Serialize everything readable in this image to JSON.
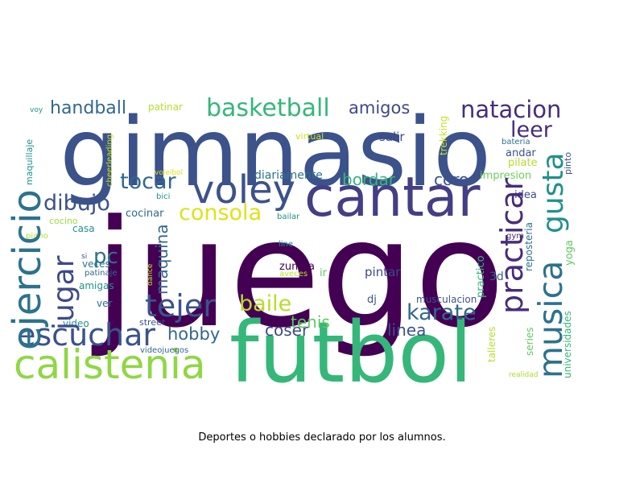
{
  "caption": "Deportes o hobbies declarado por los alumnos.",
  "words": [
    {
      "text": "juego",
      "color": "#440154",
      "vertical": false
    },
    {
      "text": "gimnasio",
      "color": "#3b528b",
      "vertical": false
    },
    {
      "text": "futbol",
      "color": "#35b779",
      "vertical": false
    },
    {
      "text": "cantar",
      "color": "#433e85",
      "vertical": false
    },
    {
      "text": "calistenia",
      "color": "#8fd744",
      "vertical": false
    },
    {
      "text": "voley",
      "color": "#3b528b",
      "vertical": false
    },
    {
      "text": "ejercicio",
      "color": "#2c728e",
      "vertical": true
    },
    {
      "text": "practicar",
      "color": "#472d7b",
      "vertical": true
    },
    {
      "text": "musica",
      "color": "#2c728e",
      "vertical": true
    },
    {
      "text": "gusta",
      "color": "#21918c",
      "vertical": true
    },
    {
      "text": "escuchar",
      "color": "#3b528b",
      "vertical": false
    },
    {
      "text": "tejer",
      "color": "#3b528b",
      "vertical": false
    },
    {
      "text": "jugar",
      "color": "#3e4989",
      "vertical": true
    },
    {
      "text": "basketball",
      "color": "#35b779",
      "vertical": false
    },
    {
      "text": "natacion",
      "color": "#472d7b",
      "vertical": false
    },
    {
      "text": "karate",
      "color": "#31688e",
      "vertical": false
    },
    {
      "text": "baile",
      "color": "#b5de2b",
      "vertical": false
    },
    {
      "text": "dibujo",
      "color": "#3b528b",
      "vertical": false
    },
    {
      "text": "consola",
      "color": "#dde318",
      "vertical": false
    },
    {
      "text": "tocar",
      "color": "#31688e",
      "vertical": false
    },
    {
      "text": "leer",
      "color": "#472d7b",
      "vertical": false
    },
    {
      "text": "handball",
      "color": "#31688e",
      "vertical": false
    },
    {
      "text": "amigos",
      "color": "#3e4989",
      "vertical": false
    },
    {
      "text": "pc",
      "color": "#2c728e",
      "vertical": false
    },
    {
      "text": "maquina",
      "color": "#31688e",
      "vertical": true
    },
    {
      "text": "hobby",
      "color": "#31688e",
      "vertical": false
    },
    {
      "text": "coser",
      "color": "#3e4989",
      "vertical": false
    },
    {
      "text": "tenis",
      "color": "#5ec962",
      "vertical": false
    },
    {
      "text": "linea",
      "color": "#3b528b",
      "vertical": false
    },
    {
      "text": "bordar",
      "color": "#35b779",
      "vertical": false
    },
    {
      "text": "coro",
      "color": "#3b528b",
      "vertical": false
    },
    {
      "text": "diariamente",
      "color": "#2c728e",
      "vertical": false
    },
    {
      "text": "cocinar",
      "color": "#31688e",
      "vertical": false
    },
    {
      "text": "patinar",
      "color": "#b5de2b",
      "vertical": false
    },
    {
      "text": "salir",
      "color": "#3e4989",
      "vertical": false
    },
    {
      "text": "andar",
      "color": "#3b528b",
      "vertical": false
    },
    {
      "text": "pilate",
      "color": "#b5de2b",
      "vertical": false
    },
    {
      "text": "impresion",
      "color": "#6ece58",
      "vertical": false
    },
    {
      "text": "idea",
      "color": "#3e4989",
      "vertical": false
    },
    {
      "text": "bateria",
      "color": "#2c728e",
      "vertical": false
    },
    {
      "text": "pinto",
      "color": "#3b528b",
      "vertical": true
    },
    {
      "text": "trekking",
      "color": "#c8e020",
      "vertical": true
    },
    {
      "text": "virtual",
      "color": "#c8e020",
      "vertical": false
    },
    {
      "text": "gym",
      "color": "#472d7b",
      "vertical": false
    },
    {
      "text": "reposteria",
      "color": "#2c728e",
      "vertical": true
    },
    {
      "text": "yoga",
      "color": "#5ec962",
      "vertical": true
    },
    {
      "text": "pintar",
      "color": "#3e4989",
      "vertical": false
    },
    {
      "text": "practico",
      "color": "#35b779",
      "vertical": true
    },
    {
      "text": "3d",
      "color": "#31688e",
      "vertical": false
    },
    {
      "text": "dj",
      "color": "#3b528b",
      "vertical": false
    },
    {
      "text": "musculacion",
      "color": "#3b528b",
      "vertical": false
    },
    {
      "text": "zumba",
      "color": "#440154",
      "vertical": false
    },
    {
      "text": "ir",
      "color": "#5ec962",
      "vertical": false
    },
    {
      "text": "aveces",
      "color": "#bddf26",
      "vertical": false
    },
    {
      "text": "line",
      "color": "#21918c",
      "vertical": false
    },
    {
      "text": "bailar",
      "color": "#21918c",
      "vertical": false
    },
    {
      "text": "bici",
      "color": "#21918c",
      "vertical": false
    },
    {
      "text": "voleibol",
      "color": "#dde318",
      "vertical": false
    },
    {
      "text": "cheerleading",
      "color": "#c8e020",
      "vertical": true
    },
    {
      "text": "maquillaje",
      "color": "#21918c",
      "vertical": true
    },
    {
      "text": "voy",
      "color": "#21918c",
      "vertical": false
    },
    {
      "text": "piano",
      "color": "#b5de2b",
      "vertical": false
    },
    {
      "text": "cocino",
      "color": "#9fda3a",
      "vertical": false
    },
    {
      "text": "casa",
      "color": "#21918c",
      "vertical": false
    },
    {
      "text": "veces",
      "color": "#2c728e",
      "vertical": false
    },
    {
      "text": "si",
      "color": "#3b528b",
      "vertical": false
    },
    {
      "text": "patinaje",
      "color": "#31688e",
      "vertical": false
    },
    {
      "text": "amigas",
      "color": "#21918c",
      "vertical": false
    },
    {
      "text": "ver",
      "color": "#2c728e",
      "vertical": false
    },
    {
      "text": "video",
      "color": "#21918c",
      "vertical": false
    },
    {
      "text": "street",
      "color": "#3b528b",
      "vertical": false
    },
    {
      "text": "videojuegos",
      "color": "#31688e",
      "vertical": false
    },
    {
      "text": "dance",
      "color": "#c8e020",
      "vertical": true
    },
    {
      "text": "talleres",
      "color": "#b5de2b",
      "vertical": true
    },
    {
      "text": "series",
      "color": "#5ec962",
      "vertical": true
    },
    {
      "text": "universidades",
      "color": "#35b779",
      "vertical": true
    },
    {
      "text": "realidad",
      "color": "#addc30",
      "vertical": false
    }
  ]
}
